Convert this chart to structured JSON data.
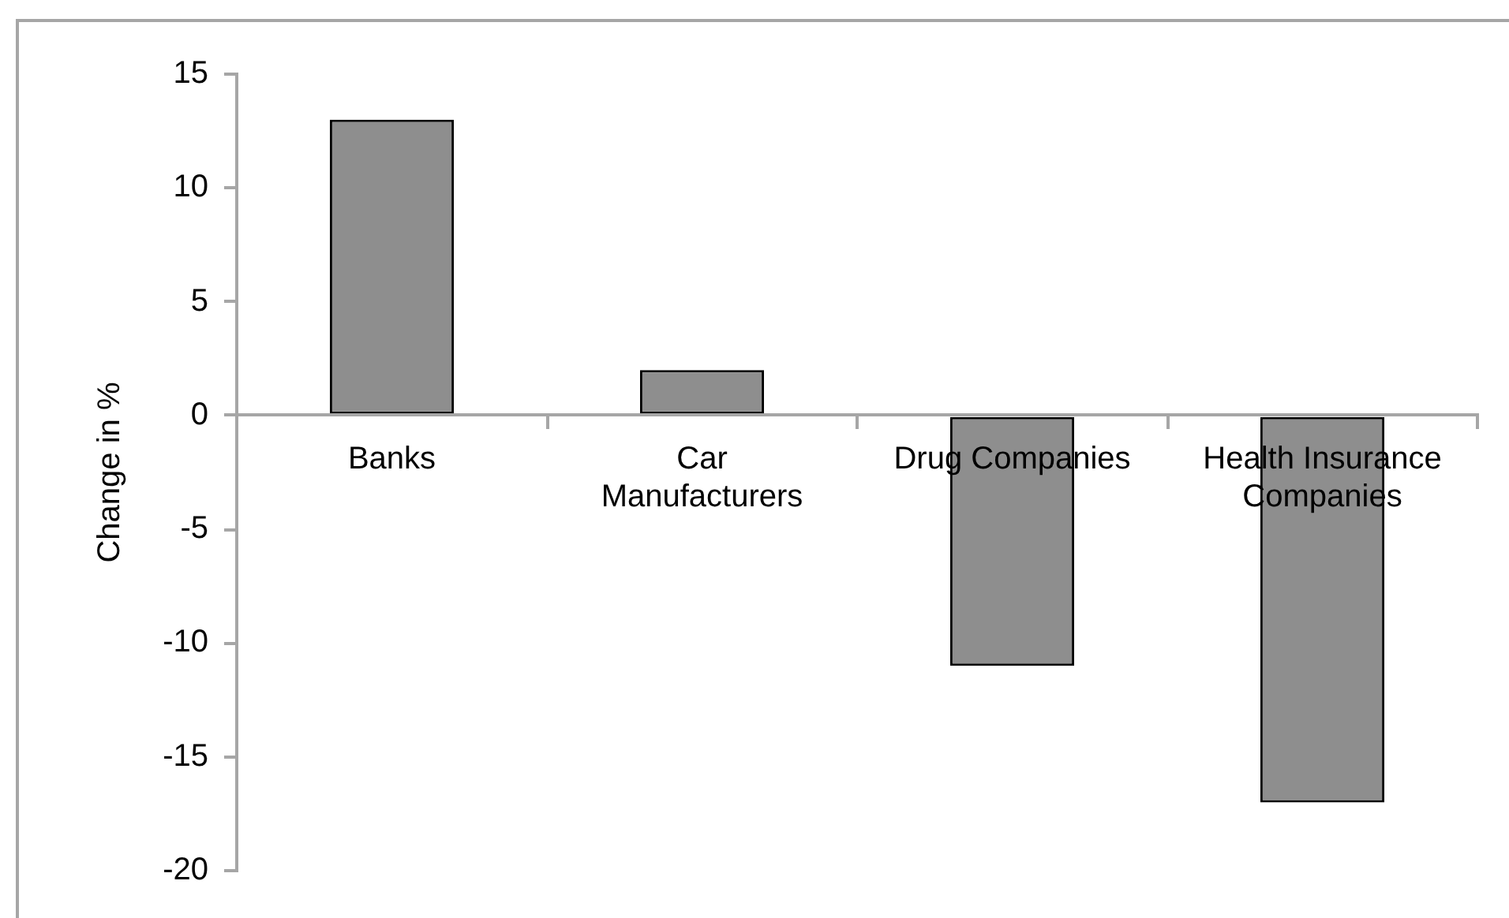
{
  "chart_data": {
    "type": "bar",
    "ylabel": "Change in %",
    "categories": [
      "Banks",
      "Car Manufacturers",
      "Drug Companies",
      "Health Insurance Companies"
    ],
    "values": [
      13,
      2,
      -11,
      -17
    ],
    "color": "#8e8e8e",
    "ylim": [
      -20,
      15
    ],
    "yticks": [
      -20,
      -15,
      -10,
      -5,
      0,
      5,
      10,
      15
    ],
    "grid": false,
    "legend": false
  }
}
